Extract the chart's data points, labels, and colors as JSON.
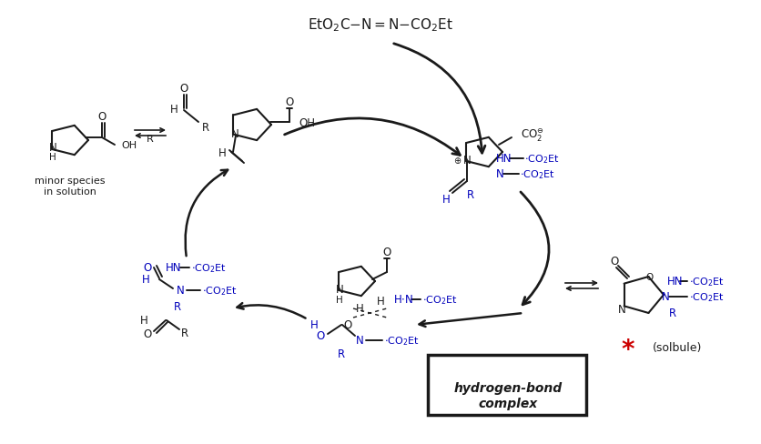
{
  "figsize": [
    8.36,
    4.89
  ],
  "dpi": 100,
  "bg": "#ffffff",
  "blk": "#1a1a1a",
  "blu": "#0000bb",
  "red": "#cc0000",
  "top_reagent": "EtO₂C–N=N–CO₂Et",
  "minor_label": "minor species\nin solution",
  "solbule": "(solbule)",
  "hb1": "hydrogen-bond",
  "hb2": "complex"
}
